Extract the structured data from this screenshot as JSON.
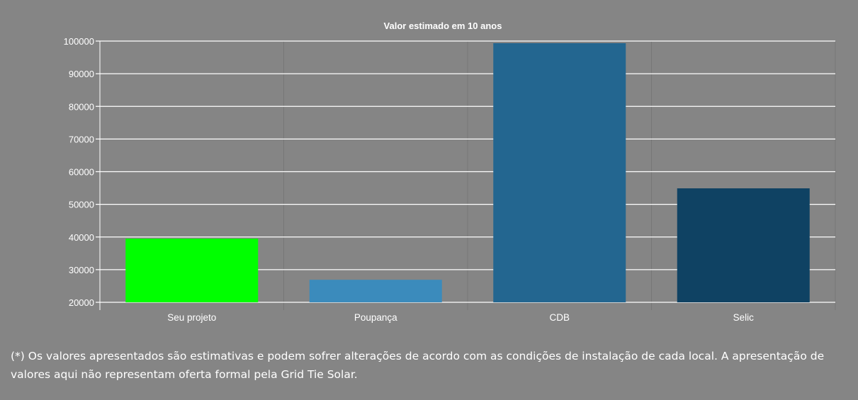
{
  "chart_data": {
    "type": "bar",
    "title": "Valor estimado em 10 anos",
    "categories": [
      "Seu projeto",
      "Poupança",
      "CDB",
      "Selic"
    ],
    "values": [
      39500,
      26900,
      99350,
      54900
    ],
    "colors": [
      "#00ff00",
      "#3b8bbc",
      "#236690",
      "#0f4263"
    ],
    "ylim": [
      20000,
      100000
    ],
    "yticks": [
      "20000",
      "30000",
      "40000",
      "50000",
      "60000",
      "70000",
      "80000",
      "90000",
      "100000"
    ],
    "grid": true,
    "legend": "none"
  },
  "footnote": "(*) Os valores apresentados são estimativas e podem sofrer alterações de acordo com as condições de instalação de cada local. A apresentação de valores aqui não representam oferta formal pela Grid Tie Solar."
}
